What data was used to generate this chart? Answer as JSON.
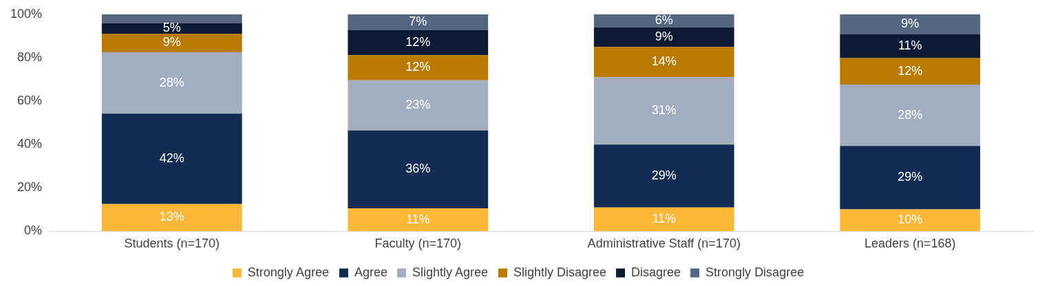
{
  "chart_data": {
    "type": "bar",
    "stacked": true,
    "categories": [
      "Students (n=170)",
      "Faculty (n=170)",
      "Administrative Staff (n=170)",
      "Leaders (n=168)"
    ],
    "series": [
      {
        "name": "Strongly Agree",
        "color": "#fbb735",
        "values": [
          12.6,
          10.6,
          11,
          10.1
        ],
        "value_labels": [
          "13%",
          "11%",
          "11%",
          "10%"
        ]
      },
      {
        "name": "Agree",
        "color": "#132c52",
        "values": [
          41.6,
          35.9,
          29,
          29.2
        ],
        "value_labels": [
          "42%",
          "36%",
          "29%",
          "29%"
        ]
      },
      {
        "name": "Slightly Agree",
        "color": "#a2adbf",
        "values": [
          28.3,
          23.1,
          31,
          28.3
        ],
        "value_labels": [
          "28%",
          "23%",
          "31%",
          "28%"
        ]
      },
      {
        "name": "Slightly Disagree",
        "color": "#b87b00",
        "values": [
          8.6,
          11.6,
          14,
          12.2
        ],
        "value_labels": [
          "9%",
          "12%",
          "14%",
          "12%"
        ]
      },
      {
        "name": "Disagree",
        "color": "#0c1a33",
        "values": [
          4.9,
          11.6,
          9,
          11.1
        ],
        "value_labels": [
          "5%",
          "12%",
          "9%",
          "11%"
        ]
      },
      {
        "name": "Strongly Disagree",
        "color": "#546580",
        "values": [
          4.0,
          7.2,
          6,
          9.1
        ],
        "value_labels": [
          null,
          "7%",
          "6%",
          "9%"
        ]
      }
    ],
    "ylim": [
      0,
      100
    ],
    "yticks": [
      {
        "value": 0,
        "label": "0%"
      },
      {
        "value": 20,
        "label": "20%"
      },
      {
        "value": 40,
        "label": "40%"
      },
      {
        "value": 60,
        "label": "60%"
      },
      {
        "value": 80,
        "label": "80%"
      },
      {
        "value": 100,
        "label": "100%"
      }
    ],
    "grid": false,
    "legend": "bottom"
  }
}
